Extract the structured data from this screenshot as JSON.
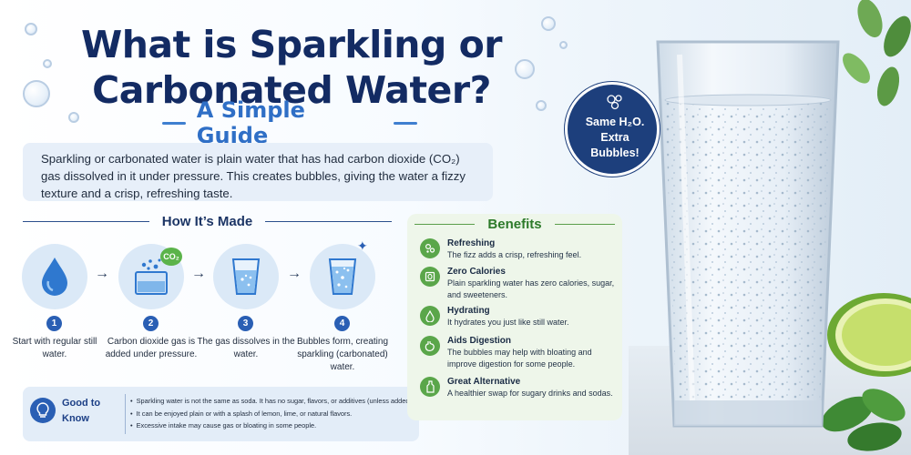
{
  "header": {
    "title": "What is Sparkling or Carbonated Water?",
    "subtitle": "A Simple Guide"
  },
  "intro": "Sparkling or carbonated water is plain water that has had carbon dioxide (CO₂) gas dissolved in it under pressure. This creates bubbles, giving the water a fizzy texture and a crisp, refreshing taste.",
  "how_its_made": {
    "heading": "How It’s Made",
    "co2_label": "CO₂",
    "steps": [
      {
        "number": "1",
        "icon": "water-drop-icon",
        "text": "Start with regular still water."
      },
      {
        "number": "2",
        "icon": "co2-bubbles-container-icon",
        "text": "Carbon dioxide gas is added under pressure."
      },
      {
        "number": "3",
        "icon": "glass-dissolving-icon",
        "text": "The gas dissolves in the water."
      },
      {
        "number": "4",
        "icon": "sparkling-glass-icon",
        "text": "Bubbles form, creating sparkling (carbonated) water."
      }
    ]
  },
  "good_to_know": {
    "title": "Good to Know",
    "icon": "lightbulb-icon",
    "items": [
      "Sparkling water is not the same as soda. It has no sugar, flavors, or additives (unless added).",
      "It can be enjoyed plain or with a splash of lemon, lime, or natural flavors.",
      "Excessive intake may cause gas or bloating in some people."
    ]
  },
  "benefits": {
    "heading": "Benefits",
    "items": [
      {
        "icon": "bubbles-icon",
        "title": "Refreshing",
        "desc": "The fizz adds a crisp, refreshing feel."
      },
      {
        "icon": "zero-calorie-icon",
        "title": "Zero Calories",
        "desc": "Plain sparkling water has zero calories, sugar, and sweeteners."
      },
      {
        "icon": "water-drop-icon",
        "title": "Hydrating",
        "desc": "It hydrates you just like still water."
      },
      {
        "icon": "stomach-icon",
        "title": "Aids Digestion",
        "desc": "The bubbles may help with bloating and improve digestion for some people."
      },
      {
        "icon": "bottle-icon",
        "title": "Great Alternative",
        "desc": "A healthier swap for sugary drinks and sodas."
      }
    ]
  },
  "badge": {
    "line1": "Same H₂O.",
    "line2": "Extra",
    "line3": "Bubbles!"
  },
  "colors": {
    "navy": "#132b63",
    "accent_blue": "#2f6fc6",
    "benefit_green": "#5aa64a"
  }
}
